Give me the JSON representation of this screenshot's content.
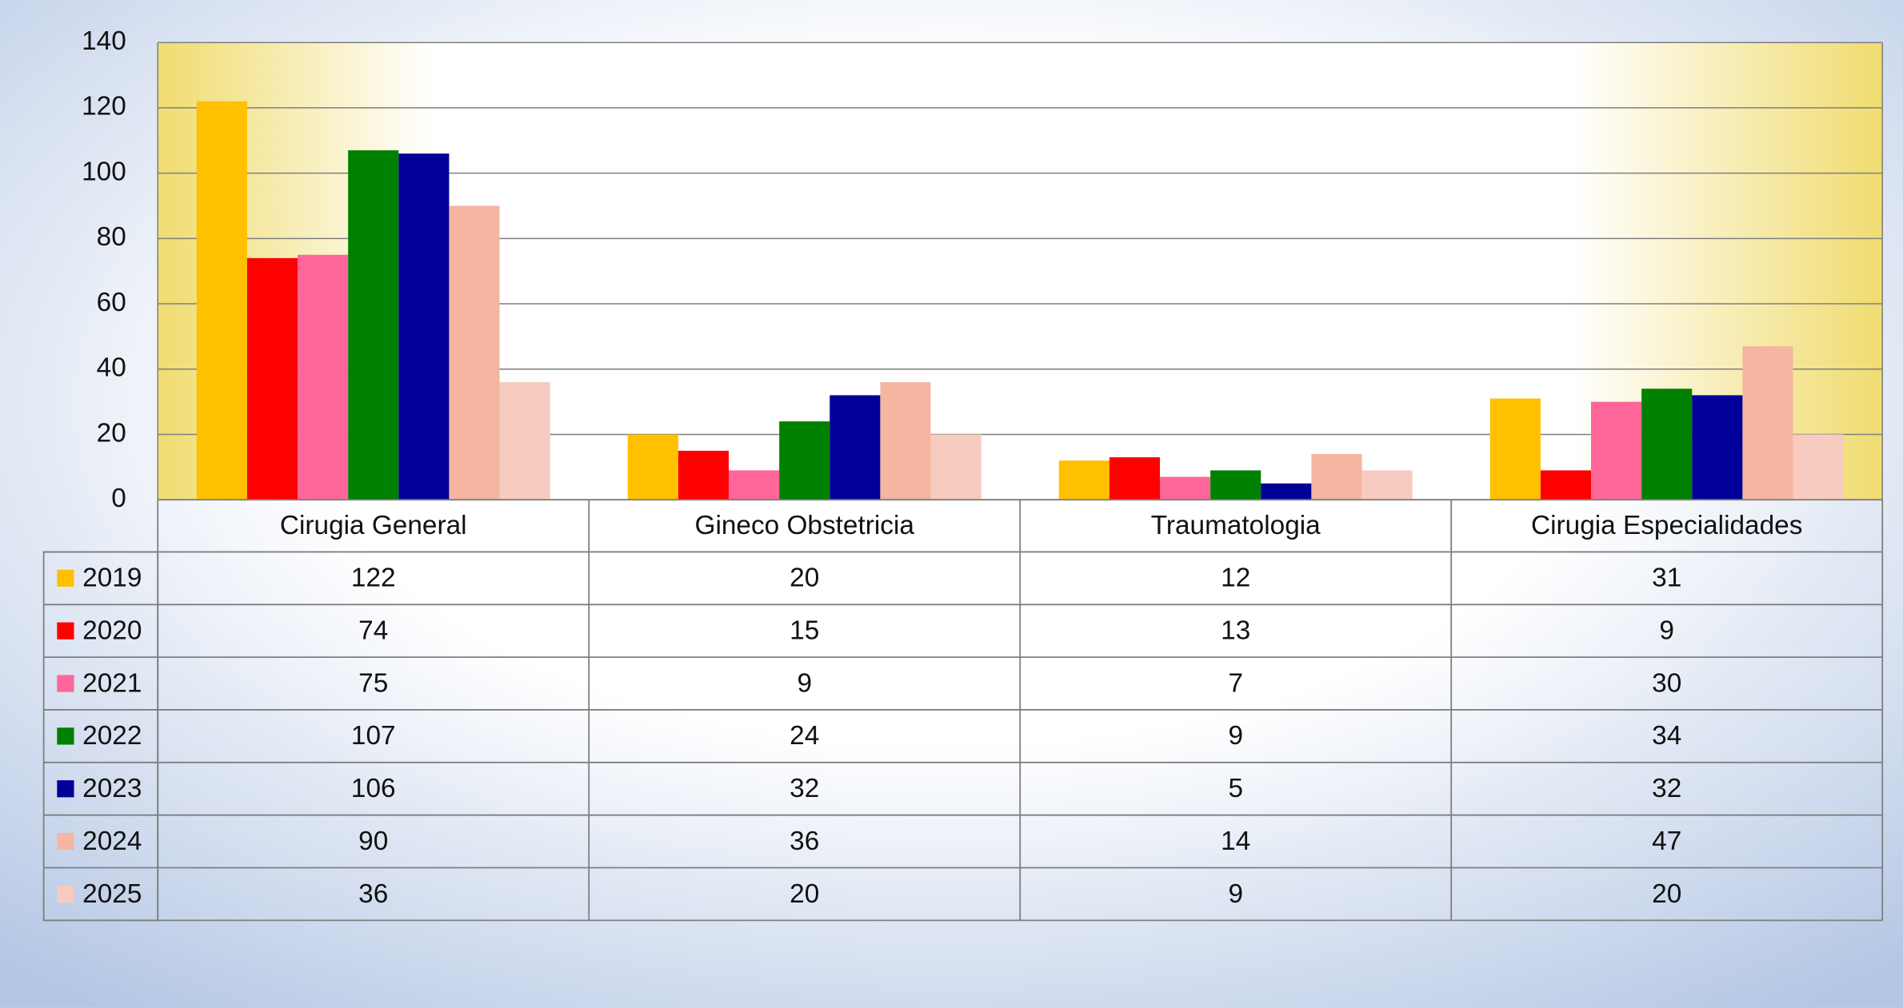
{
  "chart_data": {
    "type": "bar",
    "categories": [
      "Cirugia General",
      "Gineco Obstetricia",
      "Traumatologia",
      "Cirugia Especialidades"
    ],
    "series": [
      {
        "name": "2019",
        "color": "#FFC000",
        "values": [
          122,
          20,
          12,
          31
        ]
      },
      {
        "name": "2020",
        "color": "#FF0000",
        "values": [
          74,
          15,
          13,
          9
        ]
      },
      {
        "name": "2021",
        "color": "#FF6699",
        "values": [
          75,
          9,
          7,
          30
        ]
      },
      {
        "name": "2022",
        "color": "#008000",
        "values": [
          107,
          24,
          9,
          34
        ]
      },
      {
        "name": "2023",
        "color": "#000099",
        "values": [
          106,
          32,
          5,
          32
        ]
      },
      {
        "name": "2024",
        "color": "#F4B6A0",
        "values": [
          90,
          36,
          14,
          47
        ]
      },
      {
        "name": "2025",
        "color": "#F7CBBF",
        "values": [
          36,
          20,
          9,
          20
        ]
      }
    ],
    "ylim": [
      0,
      140
    ],
    "yticks": [
      0,
      20,
      40,
      60,
      80,
      100,
      120,
      140
    ],
    "grid": true,
    "data_table": true
  }
}
